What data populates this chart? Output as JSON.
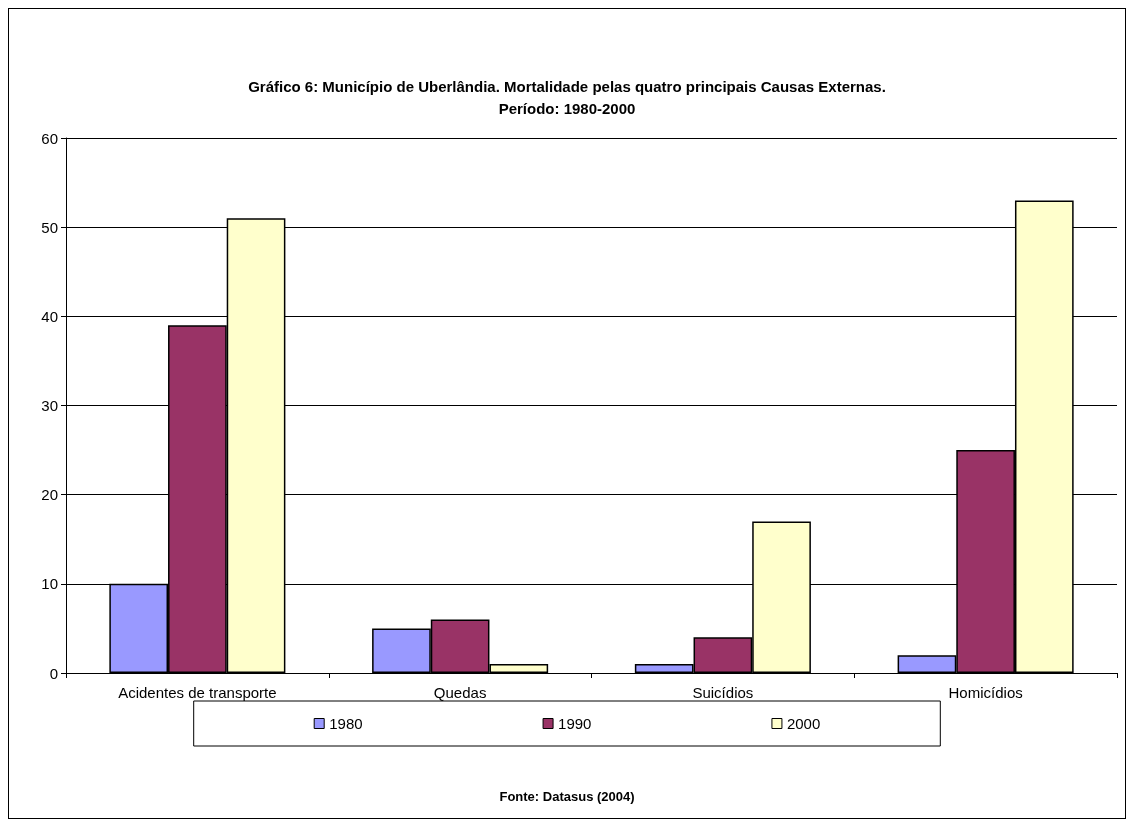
{
  "chart_data": {
    "type": "bar",
    "title": "Gráfico 6: Município de Uberlândia. Mortalidade pelas quatro principais Causas Externas.",
    "subtitle": "Período: 1980-2000",
    "annotations": [
      "Fonte: Datasus (2004)"
    ],
    "categories": [
      "Acidentes de transporte",
      "Quedas",
      "Suicídios",
      "Homicídios"
    ],
    "series": [
      {
        "name": "1980",
        "color": "#9999ff",
        "values": [
          10,
          5,
          1,
          2
        ]
      },
      {
        "name": "1990",
        "color": "#993366",
        "values": [
          39,
          6,
          4,
          25
        ]
      },
      {
        "name": "2000",
        "color": "#ffffcc",
        "values": [
          51,
          1,
          17,
          53
        ]
      }
    ],
    "ylim": [
      0,
      60
    ],
    "yticks": [
      0,
      10,
      20,
      30,
      40,
      50,
      60
    ],
    "grid": "y",
    "legend": "bottom"
  }
}
